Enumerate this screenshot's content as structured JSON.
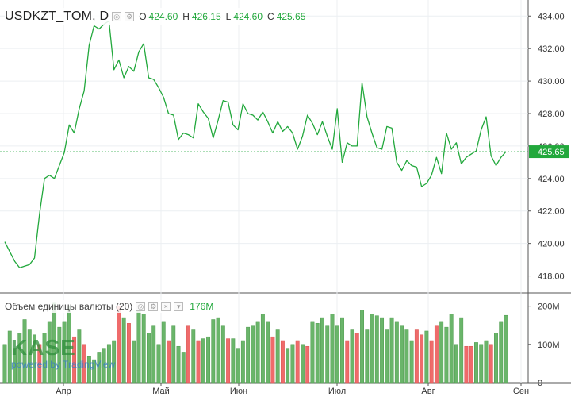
{
  "symbol": "USDKZT_TOM, D",
  "ohlc": {
    "open_label": "O",
    "open": "424.60",
    "high_label": "H",
    "high": "426.15",
    "low_label": "L",
    "low": "424.60",
    "close_label": "C",
    "close": "425.65"
  },
  "last_price_label": "425.65",
  "volume_legend": {
    "label": "Объем единицы валюты (20)",
    "value": "176M"
  },
  "branding": {
    "logo": "KASE",
    "powered_by": "powered by TradingView"
  },
  "colors": {
    "line": "#22a83c",
    "up": "#6ab56a",
    "down": "#ef6b6b",
    "last_label_bg": "#22a83c"
  },
  "chart_data": {
    "type": "line",
    "ylim": [
      417,
      434.6
    ],
    "y_ticks": [
      "434.00",
      "432.00",
      "430.00",
      "428.00",
      "426.00",
      "424.00",
      "422.00",
      "420.00",
      "418.00"
    ],
    "x_ticks": [
      "Апр",
      "Май",
      "Июн",
      "Июл",
      "Авг",
      "Сен"
    ],
    "last_value": 425.65,
    "series": [
      {
        "values": [
          420.1,
          419.5,
          418.9,
          418.5,
          418.6,
          418.7,
          419.1,
          421.8,
          424.0,
          424.2,
          424.0,
          424.8,
          425.6,
          427.3,
          426.8,
          428.3,
          429.4,
          432.2,
          433.4,
          433.2,
          433.5,
          433.7,
          430.7,
          431.3,
          430.2,
          430.9,
          430.6,
          431.8,
          432.3,
          430.2,
          430.1,
          429.6,
          429.0,
          428.0,
          427.9,
          426.4,
          426.8,
          426.7,
          426.5,
          428.6,
          428.1,
          427.7,
          426.5,
          427.6,
          428.8,
          428.7,
          427.3,
          427.0,
          428.6,
          428.0,
          427.9,
          427.6,
          428.1,
          427.5,
          426.8,
          427.5,
          426.9,
          427.2,
          426.8,
          425.8,
          426.6,
          427.9,
          427.4,
          426.7,
          427.5,
          426.6,
          425.8,
          428.3,
          425.0,
          426.2,
          426.0,
          426.0,
          429.9,
          427.8,
          426.8,
          425.9,
          425.8,
          427.2,
          427.1,
          425.0,
          424.5,
          425.1,
          424.8,
          424.7,
          423.5,
          423.7,
          424.2,
          425.3,
          424.3,
          426.8,
          425.8,
          426.2,
          424.9,
          425.3,
          425.5,
          425.7,
          427.0,
          427.8,
          425.4,
          424.8,
          425.3,
          425.65
        ]
      }
    ],
    "volume": {
      "ylim": [
        0,
        220
      ],
      "y_ticks": [
        "200M",
        "100M",
        "0"
      ],
      "last_value": 176,
      "values": [
        100,
        135,
        90,
        130,
        165,
        140,
        125,
        100,
        130,
        160,
        210,
        145,
        160,
        200,
        120,
        140,
        100,
        70,
        60,
        80,
        90,
        100,
        110,
        200,
        170,
        155,
        110,
        190,
        180,
        130,
        150,
        100,
        160,
        110,
        150,
        95,
        80,
        150,
        140,
        110,
        115,
        120,
        165,
        170,
        150,
        115,
        115,
        90,
        110,
        145,
        150,
        160,
        180,
        160,
        120,
        140,
        110,
        90,
        100,
        110,
        100,
        95,
        160,
        155,
        170,
        150,
        180,
        150,
        170,
        110,
        140,
        130,
        190,
        140,
        180,
        175,
        170,
        140,
        170,
        160,
        150,
        140,
        110,
        140,
        125,
        135,
        110,
        150,
        160,
        145,
        180,
        100,
        170,
        95,
        95,
        105,
        100,
        110,
        100,
        130,
        160,
        176
      ],
      "up": [
        1,
        1,
        1,
        1,
        1,
        1,
        1,
        0,
        1,
        1,
        1,
        1,
        1,
        1,
        0,
        1,
        0,
        1,
        1,
        1,
        1,
        1,
        1,
        0,
        1,
        0,
        1,
        1,
        1,
        1,
        1,
        1,
        1,
        0,
        1,
        1,
        1,
        0,
        1,
        0,
        1,
        1,
        1,
        1,
        1,
        0,
        1,
        1,
        1,
        1,
        1,
        1,
        1,
        1,
        0,
        1,
        0,
        1,
        1,
        0,
        1,
        0,
        1,
        1,
        1,
        1,
        1,
        1,
        1,
        0,
        1,
        0,
        1,
        1,
        1,
        1,
        1,
        1,
        1,
        1,
        1,
        1,
        1,
        0,
        0,
        1,
        0,
        0,
        1,
        1,
        1,
        1,
        1,
        0,
        0,
        1,
        1,
        1,
        0,
        1,
        1,
        1
      ]
    }
  }
}
